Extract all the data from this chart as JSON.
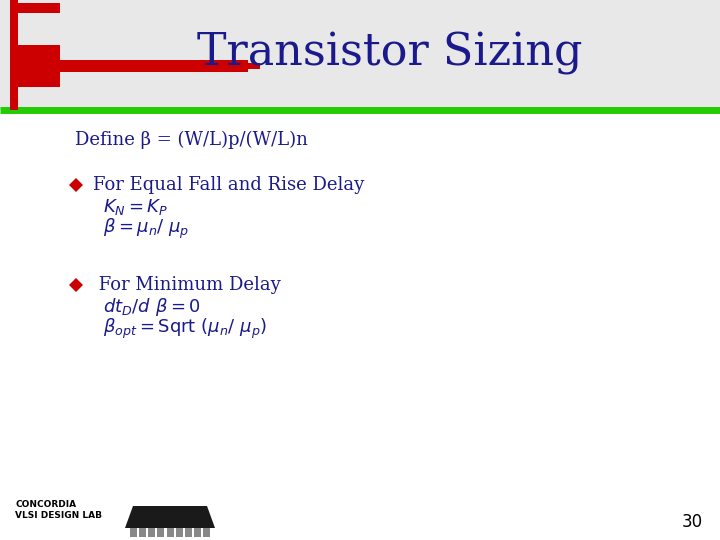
{
  "title": "Transistor Sizing",
  "title_color": "#1a1a8c",
  "title_fontsize": 32,
  "slide_bg": "#ffffff",
  "header_bg": "#e8e8e8",
  "green_line_color": "#22cc00",
  "red_shape_color": "#cc0000",
  "bullet_color": "#cc0000",
  "body_text_color": "#1a1a8c",
  "footer_text_color": "#000000",
  "define_text": "Define β = (W/L)p/(W/L)n",
  "b1_l1": "For Equal Fall and Rise Delay",
  "b1_l2_latex": "$K_N=K_P$",
  "b1_l3_latex": "$\\beta = \\mu_n/ \\ \\mu_p$",
  "b2_l1": " For Minimum Delay",
  "b2_l2_latex": "$dt_D/d\\ \\beta = 0$",
  "b2_l3_latex": "$\\beta_{opt} = \\mathrm{Sqrt}\\ (\\mu_n/ \\ \\mu_p)$",
  "footer_left": "CONCORDIA\nVLSI DESIGN LAB",
  "page_number": "30"
}
